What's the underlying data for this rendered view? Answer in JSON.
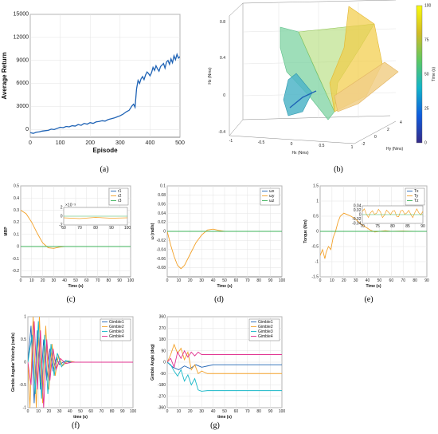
{
  "captions": {
    "a": "(a)",
    "b": "(b)",
    "c": "(c)",
    "d": "(d)",
    "e": "(e)",
    "f": "(f)",
    "g": "(g)"
  },
  "colors": {
    "blue": "#1f63b5",
    "cyan": "#18b8c8",
    "orange": "#f3a128",
    "magenta": "#e0308f",
    "green": "#3cb35a",
    "darkblue": "#2a4db0"
  },
  "chart_data": [
    {
      "id": "a",
      "type": "line",
      "title": "",
      "xlabel": "Episode",
      "ylabel": "Average  Return",
      "xlim": [
        0,
        500
      ],
      "ylim": [
        -1000,
        15000
      ],
      "xticks": [
        0,
        100,
        200,
        300,
        400,
        500
      ],
      "yticks": [
        0,
        3000,
        6000,
        9000,
        12000,
        15000
      ],
      "ytick_labels": [
        "0",
        "3000",
        "6000",
        "9000",
        "12000",
        "15000"
      ],
      "grid": true,
      "series": [
        {
          "color": "#1f63b5",
          "x": [
            0,
            10,
            20,
            30,
            40,
            50,
            60,
            70,
            80,
            90,
            100,
            110,
            120,
            130,
            140,
            150,
            160,
            170,
            180,
            190,
            200,
            210,
            220,
            230,
            240,
            250,
            260,
            270,
            280,
            290,
            300,
            310,
            320,
            330,
            340,
            345,
            350,
            355,
            360,
            365,
            370,
            375,
            380,
            385,
            390,
            395,
            400,
            405,
            410,
            415,
            420,
            425,
            430,
            435,
            440,
            445,
            450,
            455,
            460,
            465,
            470,
            475,
            480,
            485,
            490,
            495,
            500
          ],
          "y": [
            -400,
            -500,
            -350,
            -300,
            -200,
            -150,
            -100,
            50,
            0,
            150,
            300,
            250,
            400,
            350,
            500,
            450,
            650,
            550,
            800,
            700,
            900,
            800,
            1000,
            1050,
            1150,
            1100,
            1300,
            1400,
            1500,
            1650,
            1800,
            2000,
            2300,
            2500,
            3100,
            3300,
            2900,
            5300,
            6400,
            6000,
            6600,
            6900,
            6500,
            7100,
            7500,
            7300,
            7000,
            7400,
            8100,
            7700,
            8300,
            7900,
            7600,
            8200,
            8400,
            8600,
            8000,
            8800,
            9000,
            8500,
            9200,
            8700,
            9600,
            9100,
            9800,
            9300,
            9500
          ]
        }
      ]
    },
    {
      "id": "b",
      "type": "surface3d",
      "title": "",
      "xlabel": "Hx (Nms)",
      "ylabel": "Hy (Nms)",
      "zlabel": "Hz (Nms)",
      "xticks": [
        -1,
        -0.5,
        0,
        0.5,
        1
      ],
      "yticks": [
        -2,
        0,
        2,
        4
      ],
      "zticks": [
        -0.4,
        0,
        0.4,
        0.8
      ],
      "colorbar_label": "Time (s)",
      "colorbar_ticks": [
        0,
        25,
        50,
        75,
        100
      ],
      "colorbar_range": [
        0,
        100
      ]
    },
    {
      "id": "c",
      "type": "line",
      "title": "",
      "xlabel": "Time (s)",
      "ylabel": "MRP",
      "xlim": [
        0,
        100
      ],
      "ylim": [
        -0.25,
        0.5
      ],
      "xticks": [
        0,
        10,
        20,
        30,
        40,
        50,
        60,
        70,
        80,
        90,
        100
      ],
      "yticks": [
        -0.2,
        -0.1,
        0,
        0.1,
        0.2,
        0.3,
        0.4,
        0.5
      ],
      "grid": true,
      "legend": [
        "r1",
        "r2",
        "r3"
      ],
      "series": [
        {
          "name": "r1",
          "color": "#1f63b5",
          "x": [
            0,
            100
          ],
          "y": [
            0,
            0
          ]
        },
        {
          "name": "r2",
          "color": "#f3a128",
          "x": [
            0,
            5,
            10,
            15,
            20,
            25,
            30,
            35,
            40,
            45,
            50,
            100
          ],
          "y": [
            0.3,
            0.27,
            0.2,
            0.11,
            0.03,
            -0.01,
            -0.015,
            -0.005,
            0,
            0,
            0,
            0
          ]
        },
        {
          "name": "r3",
          "color": "#3cb35a",
          "x": [
            0,
            100
          ],
          "y": [
            0,
            0
          ]
        }
      ],
      "inset": {
        "xlim": [
          60,
          100
        ],
        "xticks": [
          60,
          70,
          80,
          90,
          100
        ],
        "yticks": [
          -2,
          0,
          2
        ],
        "yscale_label": "×10⁻³"
      }
    },
    {
      "id": "d",
      "type": "line",
      "title": "",
      "xlabel": "Time (s)",
      "ylabel": "ω (rad/s)",
      "xlim": [
        0,
        100
      ],
      "ylim": [
        -0.1,
        0.1
      ],
      "xticks": [
        0,
        10,
        20,
        30,
        40,
        50,
        60,
        70,
        80,
        90,
        100
      ],
      "yticks": [
        -0.08,
        -0.06,
        -0.04,
        -0.02,
        0,
        0.02,
        0.04,
        0.06,
        0.08,
        0.1
      ],
      "ytick_labels": [
        "-0.08",
        "-0.06",
        "-0.04",
        "-0.02",
        "0",
        "0.02",
        "0.04",
        "0.06",
        "0.08",
        "0.1"
      ],
      "grid": true,
      "legend": [
        "ωx",
        "ωy",
        "ωz"
      ],
      "series": [
        {
          "name": "ωx",
          "color": "#1f63b5",
          "x": [
            0,
            100
          ],
          "y": [
            0,
            0
          ]
        },
        {
          "name": "ωy",
          "color": "#f3a128",
          "x": [
            0,
            3,
            6,
            9,
            12,
            15,
            20,
            25,
            30,
            35,
            40,
            45,
            50,
            100
          ],
          "y": [
            0,
            -0.03,
            -0.055,
            -0.075,
            -0.082,
            -0.075,
            -0.05,
            -0.025,
            -0.008,
            0.003,
            0.005,
            0.002,
            0,
            0
          ]
        },
        {
          "name": "ωz",
          "color": "#3cb35a",
          "x": [
            0,
            100
          ],
          "y": [
            0,
            0
          ]
        }
      ]
    },
    {
      "id": "e",
      "type": "line",
      "title": "",
      "xlabel": "Time (s)",
      "ylabel": "Torque (Nm)",
      "xlim": [
        0,
        90
      ],
      "ylim": [
        -1.5,
        1.5
      ],
      "xticks": [
        0,
        10,
        20,
        30,
        40,
        50,
        60,
        70,
        80,
        90
      ],
      "yticks": [
        -1.5,
        -1,
        -0.5,
        0,
        0.5,
        1,
        1.5
      ],
      "grid": true,
      "legend": [
        "Tx",
        "Ty",
        "Tz"
      ],
      "series": [
        {
          "name": "Tx",
          "color": "#1f63b5",
          "x": [
            0,
            90
          ],
          "y": [
            0,
            0
          ]
        },
        {
          "name": "Ty",
          "color": "#f3a128",
          "x": [
            0,
            2,
            4,
            5,
            7,
            9,
            11,
            13,
            15,
            17,
            20,
            23,
            26,
            30,
            34,
            38,
            42,
            46,
            50,
            55,
            60,
            70,
            80,
            90
          ],
          "y": [
            -0.8,
            -0.6,
            -0.9,
            -0.7,
            -0.5,
            -0.6,
            -0.2,
            0.0,
            0.3,
            0.5,
            0.6,
            0.55,
            0.5,
            0.4,
            0.25,
            0.15,
            0.05,
            -0.02,
            0.0,
            0.02,
            0.0,
            0.01,
            0.0,
            0.0
          ]
        },
        {
          "name": "Tz",
          "color": "#3cb35a",
          "x": [
            0,
            90
          ],
          "y": [
            0,
            0
          ]
        }
      ],
      "inset": {
        "xlim": [
          70,
          90
        ],
        "xticks": [
          70,
          75,
          80,
          85,
          90
        ],
        "yticks": [
          -0.04,
          -0.02,
          0,
          0.02,
          0.04
        ]
      }
    },
    {
      "id": "f",
      "type": "line",
      "title": "",
      "xlabel": "time (s)",
      "ylabel": "Gimble Angular Velocity (rad/s)",
      "xlim": [
        0,
        100
      ],
      "ylim": [
        -1,
        1
      ],
      "xticks": [
        0,
        10,
        20,
        30,
        40,
        50,
        60,
        70,
        80,
        90,
        100
      ],
      "yticks": [
        -1,
        -0.5,
        0,
        0.5,
        1
      ],
      "grid": true,
      "legend": [
        "Gimble1",
        "Gimble2",
        "Gimble3",
        "Gimble4"
      ],
      "series": [
        {
          "name": "Gimble1",
          "color": "#1f63b5",
          "x": [
            0,
            3,
            6,
            9,
            12,
            15,
            18,
            21,
            24,
            27,
            30,
            35,
            40,
            100
          ],
          "y": [
            0,
            0.8,
            -0.9,
            0.7,
            -0.6,
            0.5,
            -0.4,
            0.3,
            -0.2,
            0.1,
            -0.05,
            0.02,
            0,
            0
          ]
        },
        {
          "name": "Gimble2",
          "color": "#f3a128",
          "x": [
            0,
            2,
            5,
            8,
            11,
            14,
            17,
            20,
            23,
            26,
            29,
            33,
            38,
            45,
            100
          ],
          "y": [
            0,
            -1,
            1,
            -1,
            1,
            -0.9,
            0.8,
            -0.6,
            0.4,
            -0.3,
            0.15,
            -0.08,
            0.03,
            0,
            0
          ]
        },
        {
          "name": "Gimble3",
          "color": "#18b8c8",
          "x": [
            0,
            4,
            7,
            10,
            13,
            16,
            19,
            22,
            25,
            28,
            32,
            36,
            42,
            100
          ],
          "y": [
            0,
            0.6,
            -0.7,
            0.9,
            -0.8,
            0.6,
            -0.7,
            0.4,
            -0.3,
            0.2,
            -0.1,
            0.04,
            0,
            0
          ]
        },
        {
          "name": "Gimble4",
          "color": "#e0308f",
          "x": [
            0,
            3,
            6,
            9,
            12,
            15,
            18,
            21,
            24,
            27,
            31,
            36,
            42,
            100
          ],
          "y": [
            0,
            -0.5,
            0.9,
            -0.6,
            0.7,
            -1,
            0.5,
            -0.4,
            0.3,
            -0.15,
            0.08,
            -0.03,
            0,
            0
          ]
        }
      ]
    },
    {
      "id": "g",
      "type": "line",
      "title": "",
      "xlabel": "time (s)",
      "ylabel": "Gimble Angle (deg)",
      "xlim": [
        0,
        100
      ],
      "ylim": [
        -360,
        360
      ],
      "xticks": [
        0,
        10,
        20,
        30,
        40,
        50,
        60,
        70,
        80,
        90,
        100
      ],
      "yticks": [
        -360,
        -270,
        -180,
        -90,
        0,
        90,
        180,
        270,
        360
      ],
      "grid": true,
      "legend": [
        "Gimble1",
        "Gimble2",
        "Gimble3",
        "Gimble4"
      ],
      "series": [
        {
          "name": "Gimble1",
          "color": "#1f63b5",
          "x": [
            0,
            5,
            10,
            15,
            20,
            25,
            30,
            35,
            40,
            50,
            60,
            100
          ],
          "y": [
            0,
            -40,
            -60,
            -30,
            -50,
            -20,
            -40,
            -30,
            -20,
            -20,
            -20,
            -20
          ]
        },
        {
          "name": "Gimble2",
          "color": "#f3a128",
          "x": [
            0,
            3,
            6,
            9,
            12,
            15,
            18,
            21,
            24,
            27,
            30,
            35,
            40,
            50,
            100
          ],
          "y": [
            0,
            60,
            140,
            70,
            110,
            20,
            80,
            -60,
            -20,
            -90,
            -70,
            -90,
            -90,
            -90,
            -90
          ]
        },
        {
          "name": "Gimble3",
          "color": "#18b8c8",
          "x": [
            0,
            3,
            6,
            9,
            12,
            15,
            18,
            21,
            24,
            27,
            30,
            35,
            40,
            50,
            100
          ],
          "y": [
            0,
            -20,
            -70,
            -110,
            -60,
            -150,
            -100,
            -180,
            -130,
            -220,
            -230,
            -225,
            -225,
            -225,
            -225
          ]
        },
        {
          "name": "Gimble4",
          "color": "#e0308f",
          "x": [
            0,
            3,
            6,
            9,
            12,
            15,
            18,
            21,
            24,
            27,
            30,
            35,
            40,
            50,
            100
          ],
          "y": [
            0,
            30,
            -40,
            80,
            30,
            90,
            40,
            80,
            50,
            80,
            60,
            60,
            60,
            60,
            60
          ]
        }
      ]
    }
  ]
}
